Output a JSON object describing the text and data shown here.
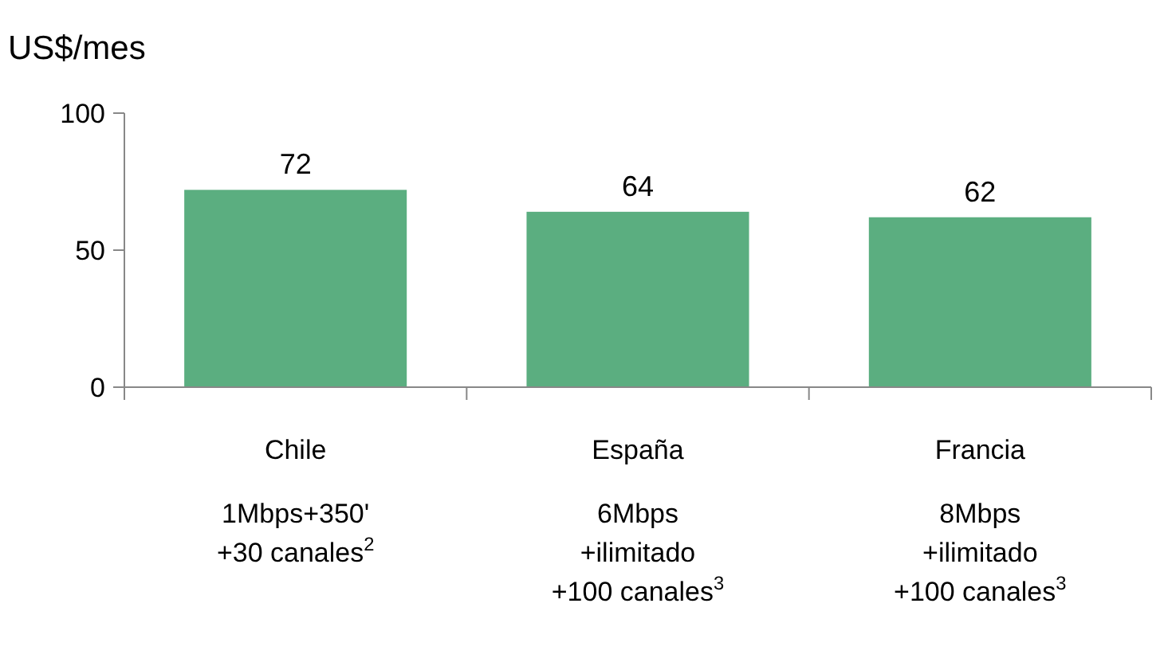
{
  "chart_data": {
    "type": "bar",
    "ylabel": "US$/mes",
    "categories": [
      "Chile",
      "España",
      "Francia"
    ],
    "values": [
      72,
      64,
      62
    ],
    "color": "#5bae80",
    "ylim": [
      0,
      100
    ],
    "yticks": [
      0,
      50,
      100
    ],
    "data_labels": true,
    "annotations": [
      "1Mbps+350'\n+30 canales$^{2}$",
      "6Mbps\n+ilimitado\n+100 canales$^{3}$",
      "8Mbps\n+ilimitado\n+100 canales$^{3}$"
    ]
  }
}
